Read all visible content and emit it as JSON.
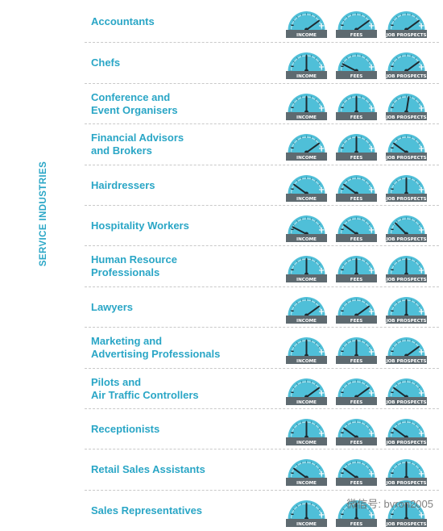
{
  "section_label": "SERVICE INDUSTRIES",
  "gauge_labels": [
    "INCOME",
    "FEES",
    "JOB PROSPECTS"
  ],
  "colors": {
    "accent": "#2aa6c6",
    "gauge_face": "#4fbfd8",
    "needle": "#1e2a30",
    "label_bar": "#5e6a70"
  },
  "rows": [
    {
      "name": "Accountants",
      "gauges": [
        0.8,
        0.8,
        0.8
      ]
    },
    {
      "name": "Chefs",
      "gauges": [
        0.5,
        0.15,
        0.8
      ]
    },
    {
      "name": "Conference and\nEvent Organisers",
      "gauges": [
        0.5,
        0.5,
        0.55
      ]
    },
    {
      "name": "Financial Advisors\nand Brokers",
      "gauges": [
        0.8,
        0.5,
        0.2
      ]
    },
    {
      "name": "Hairdressers",
      "gauges": [
        0.2,
        0.2,
        0.5
      ]
    },
    {
      "name": "Hospitality Workers",
      "gauges": [
        0.15,
        0.2,
        0.25
      ]
    },
    {
      "name": "Human Resource\nProfessionals",
      "gauges": [
        0.5,
        0.5,
        0.5
      ]
    },
    {
      "name": "Lawyers",
      "gauges": [
        0.8,
        0.8,
        0.5
      ]
    },
    {
      "name": "Marketing and\nAdvertising Professionals",
      "gauges": [
        0.5,
        0.5,
        0.8
      ]
    },
    {
      "name": "Pilots and\nAir Traffic Controllers",
      "gauges": [
        0.8,
        0.8,
        0.2
      ]
    },
    {
      "name": "Receptionists",
      "gauges": [
        0.5,
        0.2,
        0.2
      ]
    },
    {
      "name": "Retail Sales Assistants",
      "gauges": [
        0.2,
        0.2,
        0.5
      ]
    },
    {
      "name": "Sales Representatives",
      "gauges": [
        0.5,
        0.5,
        0.5
      ]
    }
  ],
  "watermark": "微信号: bvron2005"
}
